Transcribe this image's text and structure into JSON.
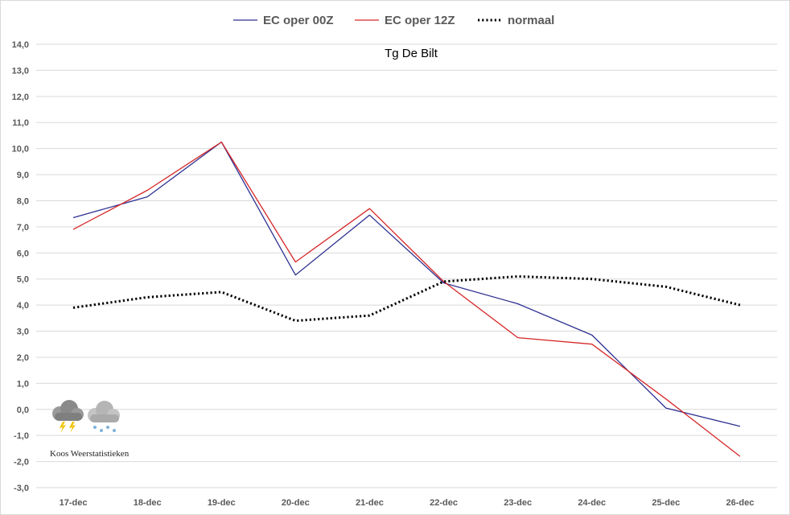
{
  "chart_data": {
    "type": "line",
    "title": "Tg De Bilt",
    "categories": [
      "17-dec",
      "18-dec",
      "19-dec",
      "20-dec",
      "21-dec",
      "22-dec",
      "23-dec",
      "24-dec",
      "25-dec",
      "26-dec"
    ],
    "y_ticks": [
      "14,0",
      "13,0",
      "12,0",
      "11,0",
      "10,0",
      "9,0",
      "8,0",
      "7,0",
      "6,0",
      "5,0",
      "4,0",
      "3,0",
      "2,0",
      "1,0",
      "0,0",
      "-1,0",
      "-2,0",
      "-3,0"
    ],
    "ylim": [
      -3,
      14
    ],
    "grid": true,
    "legend_position": "top",
    "series": [
      {
        "name": "EC oper 00Z",
        "color": "#2e3192",
        "style": "solid",
        "values": [
          7.35,
          8.15,
          10.25,
          5.15,
          7.45,
          4.85,
          4.05,
          2.85,
          0.05,
          -0.65
        ]
      },
      {
        "name": "EC oper 12Z",
        "color": "#d62728",
        "style": "solid",
        "values": [
          6.9,
          8.4,
          10.25,
          5.65,
          7.7,
          4.9,
          2.75,
          2.5,
          0.4,
          -1.8
        ]
      },
      {
        "name": "normaal",
        "color": "#000000",
        "style": "dotted",
        "values": [
          3.9,
          4.3,
          4.5,
          3.4,
          3.6,
          4.9,
          5.1,
          5.0,
          4.7,
          4.0
        ]
      }
    ]
  },
  "watermark": {
    "text": "Koos Weerstatistieken",
    "icons": [
      "thunderstorm-cloud-icon",
      "snow-cloud-icon"
    ]
  }
}
